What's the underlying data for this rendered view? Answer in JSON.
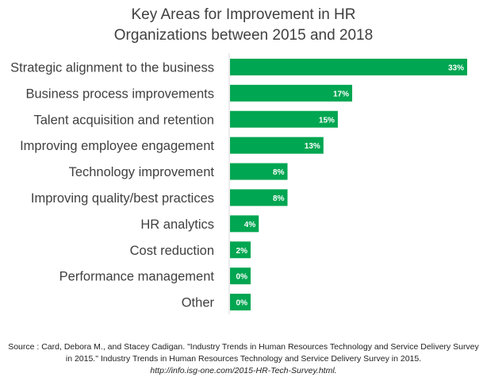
{
  "title_line1": "Key Areas for Improvement in HR",
  "title_line2": "Organizations between 2015 and 2018",
  "source_text": "Source : Card, Debora M., and Stacey Cadigan. \"Industry Trends in Human Resources Technology and Service Delivery Survey in 2015.\" Industry Trends in Human Resources Technology and Service Delivery Survey in 2015.",
  "source_url": "http://info.isg-one.com/2015-HR-Tech-Survey.html.",
  "colors": {
    "bar": "#00a651",
    "label": "#404040",
    "axis": "#d9d9d9"
  },
  "chart_data": {
    "type": "bar",
    "orientation": "horizontal",
    "categories": [
      "Strategic alignment to the business",
      "Business process improvements",
      "Talent acquisition and retention",
      "Improving employee engagement",
      "Technology improvement",
      "Improving quality/best practices",
      "HR analytics",
      "Cost reduction",
      "Performance management",
      "Other"
    ],
    "values": [
      33,
      17,
      15,
      13,
      8,
      8,
      4,
      2,
      0,
      0
    ],
    "data_labels": [
      "33%",
      "17%",
      "15%",
      "13%",
      "8%",
      "8%",
      "4%",
      "2%",
      "0%",
      "0%"
    ],
    "title": "Key Areas for Improvement in HR Organizations between 2015 and 2018",
    "xlabel": "",
    "ylabel": "",
    "xlim": [
      0,
      33
    ],
    "grid": false,
    "legend": "none"
  }
}
